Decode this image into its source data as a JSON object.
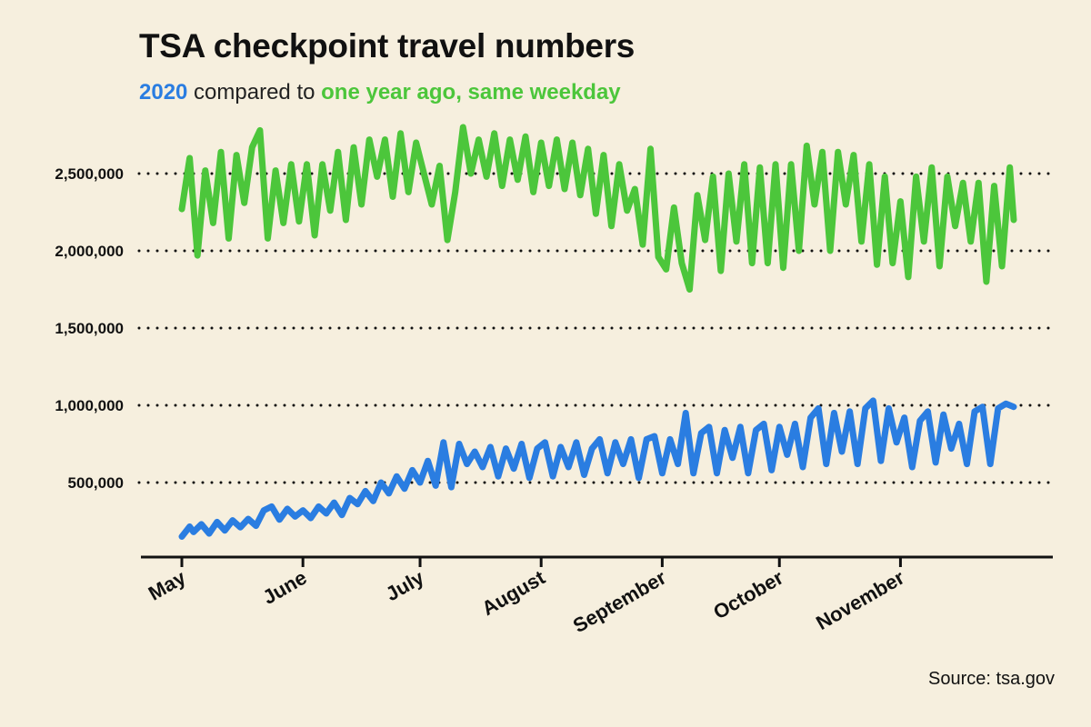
{
  "title": "TSA checkpoint travel numbers",
  "subtitle": {
    "series_2020": "2020",
    "middle": " compared to ",
    "series_prior": "one year ago, same weekday"
  },
  "source": "Source: tsa.gov",
  "colors": {
    "background": "#f6efde",
    "series_2020": "#2a7de1",
    "series_prior": "#4cc63b",
    "axis": "#111111",
    "grid": "#111111"
  },
  "chart_data": {
    "type": "line",
    "title": "TSA checkpoint travel numbers",
    "x_range": [
      "2020-05-01",
      "2020-11-30"
    ],
    "x_ticks": [
      {
        "label": "May",
        "date": "2020-05-01"
      },
      {
        "label": "June",
        "date": "2020-06-01"
      },
      {
        "label": "July",
        "date": "2020-07-01"
      },
      {
        "label": "August",
        "date": "2020-08-01"
      },
      {
        "label": "September",
        "date": "2020-09-01"
      },
      {
        "label": "October",
        "date": "2020-10-01"
      },
      {
        "label": "November",
        "date": "2020-11-01"
      }
    ],
    "ylim": [
      0,
      2850000
    ],
    "y_ticks": [
      {
        "label": "500,000",
        "value": 500000
      },
      {
        "label": "1,000,000",
        "value": 1000000
      },
      {
        "label": "1,500,000",
        "value": 1500000
      },
      {
        "label": "2,000,000",
        "value": 2000000
      },
      {
        "label": "2,500,000",
        "value": 2500000
      }
    ],
    "grid": "horizontal dotted",
    "series": [
      {
        "name": "2020",
        "color": "#2a7de1",
        "points": [
          [
            "2020-05-01",
            150000
          ],
          [
            "2020-05-03",
            215000
          ],
          [
            "2020-05-04",
            180000
          ],
          [
            "2020-05-06",
            230000
          ],
          [
            "2020-05-08",
            170000
          ],
          [
            "2020-05-10",
            245000
          ],
          [
            "2020-05-12",
            190000
          ],
          [
            "2020-05-14",
            255000
          ],
          [
            "2020-05-16",
            210000
          ],
          [
            "2020-05-18",
            265000
          ],
          [
            "2020-05-20",
            220000
          ],
          [
            "2020-05-22",
            320000
          ],
          [
            "2020-05-24",
            345000
          ],
          [
            "2020-05-26",
            260000
          ],
          [
            "2020-05-28",
            330000
          ],
          [
            "2020-05-30",
            280000
          ],
          [
            "2020-06-01",
            320000
          ],
          [
            "2020-06-03",
            270000
          ],
          [
            "2020-06-05",
            345000
          ],
          [
            "2020-06-07",
            300000
          ],
          [
            "2020-06-09",
            370000
          ],
          [
            "2020-06-11",
            290000
          ],
          [
            "2020-06-13",
            400000
          ],
          [
            "2020-06-15",
            360000
          ],
          [
            "2020-06-17",
            445000
          ],
          [
            "2020-06-19",
            380000
          ],
          [
            "2020-06-21",
            500000
          ],
          [
            "2020-06-23",
            430000
          ],
          [
            "2020-06-25",
            540000
          ],
          [
            "2020-06-27",
            460000
          ],
          [
            "2020-06-29",
            580000
          ],
          [
            "2020-07-01",
            500000
          ],
          [
            "2020-07-03",
            640000
          ],
          [
            "2020-07-05",
            480000
          ],
          [
            "2020-07-07",
            760000
          ],
          [
            "2020-07-09",
            470000
          ],
          [
            "2020-07-11",
            750000
          ],
          [
            "2020-07-13",
            620000
          ],
          [
            "2020-07-15",
            700000
          ],
          [
            "2020-07-17",
            600000
          ],
          [
            "2020-07-19",
            730000
          ],
          [
            "2020-07-21",
            540000
          ],
          [
            "2020-07-23",
            720000
          ],
          [
            "2020-07-25",
            590000
          ],
          [
            "2020-07-27",
            750000
          ],
          [
            "2020-07-29",
            530000
          ],
          [
            "2020-07-31",
            720000
          ],
          [
            "2020-08-02",
            760000
          ],
          [
            "2020-08-04",
            540000
          ],
          [
            "2020-08-06",
            730000
          ],
          [
            "2020-08-08",
            600000
          ],
          [
            "2020-08-10",
            760000
          ],
          [
            "2020-08-12",
            550000
          ],
          [
            "2020-08-14",
            720000
          ],
          [
            "2020-08-16",
            780000
          ],
          [
            "2020-08-18",
            560000
          ],
          [
            "2020-08-20",
            760000
          ],
          [
            "2020-08-22",
            620000
          ],
          [
            "2020-08-24",
            780000
          ],
          [
            "2020-08-26",
            530000
          ],
          [
            "2020-08-28",
            780000
          ],
          [
            "2020-08-30",
            800000
          ],
          [
            "2020-09-01",
            560000
          ],
          [
            "2020-09-03",
            780000
          ],
          [
            "2020-09-05",
            620000
          ],
          [
            "2020-09-07",
            950000
          ],
          [
            "2020-09-09",
            560000
          ],
          [
            "2020-09-11",
            820000
          ],
          [
            "2020-09-13",
            860000
          ],
          [
            "2020-09-15",
            560000
          ],
          [
            "2020-09-17",
            840000
          ],
          [
            "2020-09-19",
            660000
          ],
          [
            "2020-09-21",
            860000
          ],
          [
            "2020-09-23",
            560000
          ],
          [
            "2020-09-25",
            840000
          ],
          [
            "2020-09-27",
            880000
          ],
          [
            "2020-09-29",
            580000
          ],
          [
            "2020-10-01",
            860000
          ],
          [
            "2020-10-03",
            680000
          ],
          [
            "2020-10-05",
            880000
          ],
          [
            "2020-10-07",
            600000
          ],
          [
            "2020-10-09",
            920000
          ],
          [
            "2020-10-11",
            980000
          ],
          [
            "2020-10-13",
            620000
          ],
          [
            "2020-10-15",
            950000
          ],
          [
            "2020-10-17",
            700000
          ],
          [
            "2020-10-19",
            960000
          ],
          [
            "2020-10-21",
            620000
          ],
          [
            "2020-10-23",
            980000
          ],
          [
            "2020-10-25",
            1030000
          ],
          [
            "2020-10-27",
            640000
          ],
          [
            "2020-10-29",
            980000
          ],
          [
            "2020-10-31",
            760000
          ],
          [
            "2020-11-02",
            920000
          ],
          [
            "2020-11-04",
            600000
          ],
          [
            "2020-11-06",
            900000
          ],
          [
            "2020-11-08",
            960000
          ],
          [
            "2020-11-10",
            630000
          ],
          [
            "2020-11-12",
            940000
          ],
          [
            "2020-11-14",
            720000
          ],
          [
            "2020-11-16",
            880000
          ],
          [
            "2020-11-18",
            620000
          ],
          [
            "2020-11-20",
            960000
          ],
          [
            "2020-11-22",
            990000
          ],
          [
            "2020-11-24",
            620000
          ],
          [
            "2020-11-26",
            980000
          ],
          [
            "2020-11-28",
            1010000
          ],
          [
            "2020-11-30",
            990000
          ]
        ]
      },
      {
        "name": "one year ago, same weekday",
        "color": "#4cc63b",
        "points": [
          [
            "2020-05-01",
            2270000
          ],
          [
            "2020-05-03",
            2600000
          ],
          [
            "2020-05-05",
            1970000
          ],
          [
            "2020-05-07",
            2520000
          ],
          [
            "2020-05-09",
            2180000
          ],
          [
            "2020-05-11",
            2640000
          ],
          [
            "2020-05-13",
            2080000
          ],
          [
            "2020-05-15",
            2620000
          ],
          [
            "2020-05-17",
            2310000
          ],
          [
            "2020-05-19",
            2670000
          ],
          [
            "2020-05-21",
            2780000
          ],
          [
            "2020-05-23",
            2080000
          ],
          [
            "2020-05-25",
            2520000
          ],
          [
            "2020-05-27",
            2180000
          ],
          [
            "2020-05-29",
            2560000
          ],
          [
            "2020-05-31",
            2190000
          ],
          [
            "2020-06-02",
            2560000
          ],
          [
            "2020-06-04",
            2100000
          ],
          [
            "2020-06-06",
            2560000
          ],
          [
            "2020-06-08",
            2260000
          ],
          [
            "2020-06-10",
            2640000
          ],
          [
            "2020-06-12",
            2200000
          ],
          [
            "2020-06-14",
            2670000
          ],
          [
            "2020-06-16",
            2300000
          ],
          [
            "2020-06-18",
            2720000
          ],
          [
            "2020-06-20",
            2480000
          ],
          [
            "2020-06-22",
            2720000
          ],
          [
            "2020-06-24",
            2350000
          ],
          [
            "2020-06-26",
            2760000
          ],
          [
            "2020-06-28",
            2380000
          ],
          [
            "2020-06-30",
            2700000
          ],
          [
            "2020-07-02",
            2500000
          ],
          [
            "2020-07-04",
            2300000
          ],
          [
            "2020-07-06",
            2550000
          ],
          [
            "2020-07-08",
            2070000
          ],
          [
            "2020-07-10",
            2380000
          ],
          [
            "2020-07-12",
            2800000
          ],
          [
            "2020-07-14",
            2500000
          ],
          [
            "2020-07-16",
            2720000
          ],
          [
            "2020-07-18",
            2480000
          ],
          [
            "2020-07-20",
            2760000
          ],
          [
            "2020-07-22",
            2420000
          ],
          [
            "2020-07-24",
            2720000
          ],
          [
            "2020-07-26",
            2460000
          ],
          [
            "2020-07-28",
            2740000
          ],
          [
            "2020-07-30",
            2380000
          ],
          [
            "2020-08-01",
            2700000
          ],
          [
            "2020-08-03",
            2420000
          ],
          [
            "2020-08-05",
            2720000
          ],
          [
            "2020-08-07",
            2400000
          ],
          [
            "2020-08-09",
            2700000
          ],
          [
            "2020-08-11",
            2360000
          ],
          [
            "2020-08-13",
            2660000
          ],
          [
            "2020-08-15",
            2240000
          ],
          [
            "2020-08-17",
            2620000
          ],
          [
            "2020-08-19",
            2160000
          ],
          [
            "2020-08-21",
            2560000
          ],
          [
            "2020-08-23",
            2260000
          ],
          [
            "2020-08-25",
            2400000
          ],
          [
            "2020-08-27",
            2040000
          ],
          [
            "2020-08-29",
            2660000
          ],
          [
            "2020-08-31",
            1960000
          ],
          [
            "2020-09-02",
            1880000
          ],
          [
            "2020-09-04",
            2280000
          ],
          [
            "2020-09-06",
            1920000
          ],
          [
            "2020-09-08",
            1750000
          ],
          [
            "2020-09-10",
            2360000
          ],
          [
            "2020-09-12",
            2070000
          ],
          [
            "2020-09-14",
            2480000
          ],
          [
            "2020-09-16",
            1870000
          ],
          [
            "2020-09-18",
            2500000
          ],
          [
            "2020-09-20",
            2060000
          ],
          [
            "2020-09-22",
            2560000
          ],
          [
            "2020-09-24",
            1920000
          ],
          [
            "2020-09-26",
            2540000
          ],
          [
            "2020-09-28",
            1920000
          ],
          [
            "2020-09-30",
            2560000
          ],
          [
            "2020-10-02",
            1890000
          ],
          [
            "2020-10-04",
            2560000
          ],
          [
            "2020-10-06",
            2000000
          ],
          [
            "2020-10-08",
            2680000
          ],
          [
            "2020-10-10",
            2300000
          ],
          [
            "2020-10-12",
            2640000
          ],
          [
            "2020-10-14",
            2000000
          ],
          [
            "2020-10-16",
            2640000
          ],
          [
            "2020-10-18",
            2300000
          ],
          [
            "2020-10-20",
            2620000
          ],
          [
            "2020-10-22",
            2060000
          ],
          [
            "2020-10-24",
            2560000
          ],
          [
            "2020-10-26",
            1910000
          ],
          [
            "2020-10-28",
            2480000
          ],
          [
            "2020-10-30",
            1920000
          ],
          [
            "2020-11-01",
            2320000
          ],
          [
            "2020-11-03",
            1830000
          ],
          [
            "2020-11-05",
            2480000
          ],
          [
            "2020-11-07",
            2060000
          ],
          [
            "2020-11-09",
            2540000
          ],
          [
            "2020-11-11",
            1900000
          ],
          [
            "2020-11-13",
            2480000
          ],
          [
            "2020-11-15",
            2160000
          ],
          [
            "2020-11-17",
            2440000
          ],
          [
            "2020-11-19",
            2060000
          ],
          [
            "2020-11-21",
            2440000
          ],
          [
            "2020-11-23",
            1800000
          ],
          [
            "2020-11-25",
            2420000
          ],
          [
            "2020-11-27",
            1900000
          ],
          [
            "2020-11-29",
            2540000
          ],
          [
            "2020-11-30",
            2200000
          ]
        ]
      }
    ]
  }
}
